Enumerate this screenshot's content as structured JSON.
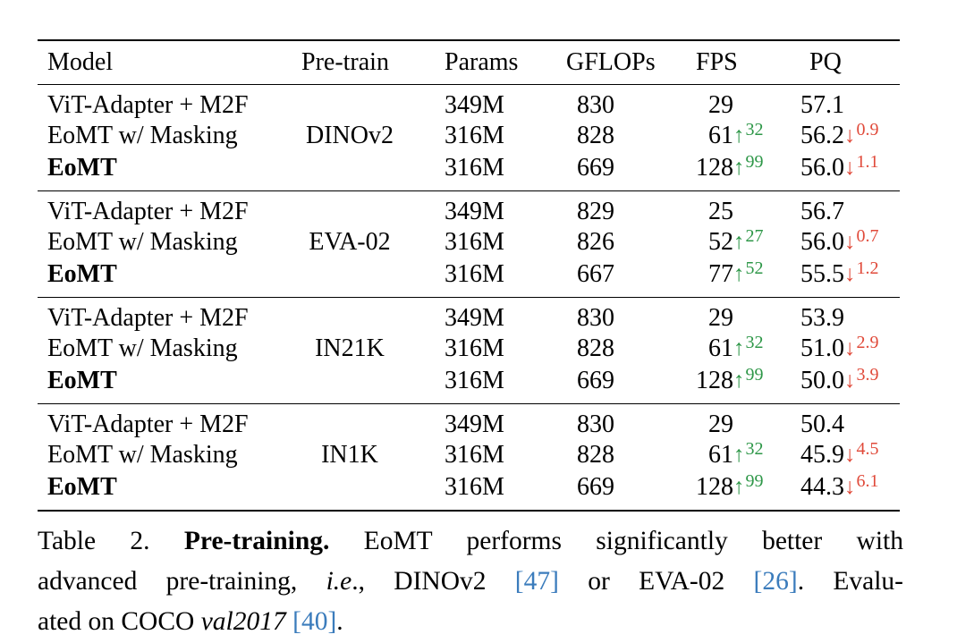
{
  "colors": {
    "background": "#ffffff",
    "text": "#000000",
    "fps_gain_green": "#2e9748",
    "pq_drop_red": "#e04a3a",
    "citation_blue": "#3b7cbc"
  },
  "table": {
    "headers": [
      "Model",
      "Pre-train",
      "Params",
      "GFLOPs",
      "FPS",
      "PQ"
    ],
    "up_arrow": "↑",
    "down_arrow": "↓",
    "groups": [
      {
        "pretrain": "DINOv2",
        "rows": [
          {
            "model": "ViT-Adapter + M2F",
            "bold": false,
            "params": "349M",
            "gflops": "830",
            "fps": "29",
            "fps_gain": null,
            "pq": "57.1",
            "pq_drop": null
          },
          {
            "model": "EoMT w/ Masking",
            "bold": false,
            "params": "316M",
            "gflops": "828",
            "fps": "61",
            "fps_gain": "32",
            "pq": "56.2",
            "pq_drop": "0.9"
          },
          {
            "model": "EoMT",
            "bold": true,
            "params": "316M",
            "gflops": "669",
            "fps": "128",
            "fps_gain": "99",
            "pq": "56.0",
            "pq_drop": "1.1"
          }
        ]
      },
      {
        "pretrain": "EVA-02",
        "rows": [
          {
            "model": "ViT-Adapter + M2F",
            "bold": false,
            "params": "349M",
            "gflops": "829",
            "fps": "25",
            "fps_gain": null,
            "pq": "56.7",
            "pq_drop": null
          },
          {
            "model": "EoMT w/ Masking",
            "bold": false,
            "params": "316M",
            "gflops": "826",
            "fps": "52",
            "fps_gain": "27",
            "pq": "56.0",
            "pq_drop": "0.7"
          },
          {
            "model": "EoMT",
            "bold": true,
            "params": "316M",
            "gflops": "667",
            "fps": "77",
            "fps_gain": "52",
            "pq": "55.5",
            "pq_drop": "1.2"
          }
        ]
      },
      {
        "pretrain": "IN21K",
        "rows": [
          {
            "model": "ViT-Adapter + M2F",
            "bold": false,
            "params": "349M",
            "gflops": "830",
            "fps": "29",
            "fps_gain": null,
            "pq": "53.9",
            "pq_drop": null
          },
          {
            "model": "EoMT w/ Masking",
            "bold": false,
            "params": "316M",
            "gflops": "828",
            "fps": "61",
            "fps_gain": "32",
            "pq": "51.0",
            "pq_drop": "2.9"
          },
          {
            "model": "EoMT",
            "bold": true,
            "params": "316M",
            "gflops": "669",
            "fps": "128",
            "fps_gain": "99",
            "pq": "50.0",
            "pq_drop": "3.9"
          }
        ]
      },
      {
        "pretrain": "IN1K",
        "rows": [
          {
            "model": "ViT-Adapter + M2F",
            "bold": false,
            "params": "349M",
            "gflops": "830",
            "fps": "29",
            "fps_gain": null,
            "pq": "50.4",
            "pq_drop": null
          },
          {
            "model": "EoMT w/ Masking",
            "bold": false,
            "params": "316M",
            "gflops": "828",
            "fps": "61",
            "fps_gain": "32",
            "pq": "45.9",
            "pq_drop": "4.5"
          },
          {
            "model": "EoMT",
            "bold": true,
            "params": "316M",
            "gflops": "669",
            "fps": "128",
            "fps_gain": "99",
            "pq": "44.3",
            "pq_drop": "6.1"
          }
        ]
      }
    ]
  },
  "caption": {
    "lines": [
      [
        {
          "t": "Table 2. ",
          "s": "n"
        },
        {
          "t": "Pre-training.",
          "s": "b"
        },
        {
          "t": " EoMT performs significantly better with",
          "s": "n"
        }
      ],
      [
        {
          "t": "advanced pre-training, ",
          "s": "n"
        },
        {
          "t": "i.e",
          "s": "i"
        },
        {
          "t": "., DINOv2 ",
          "s": "n"
        },
        {
          "t": "[47]",
          "s": "c"
        },
        {
          "t": " or EVA-02 ",
          "s": "n"
        },
        {
          "t": "[26]",
          "s": "c"
        },
        {
          "t": ". Evalu-",
          "s": "n"
        }
      ],
      [
        {
          "t": "ated on COCO ",
          "s": "n"
        },
        {
          "t": "val2017",
          "s": "i"
        },
        {
          "t": " ",
          "s": "n"
        },
        {
          "t": "[40]",
          "s": "c"
        },
        {
          "t": ".",
          "s": "n"
        }
      ]
    ]
  }
}
